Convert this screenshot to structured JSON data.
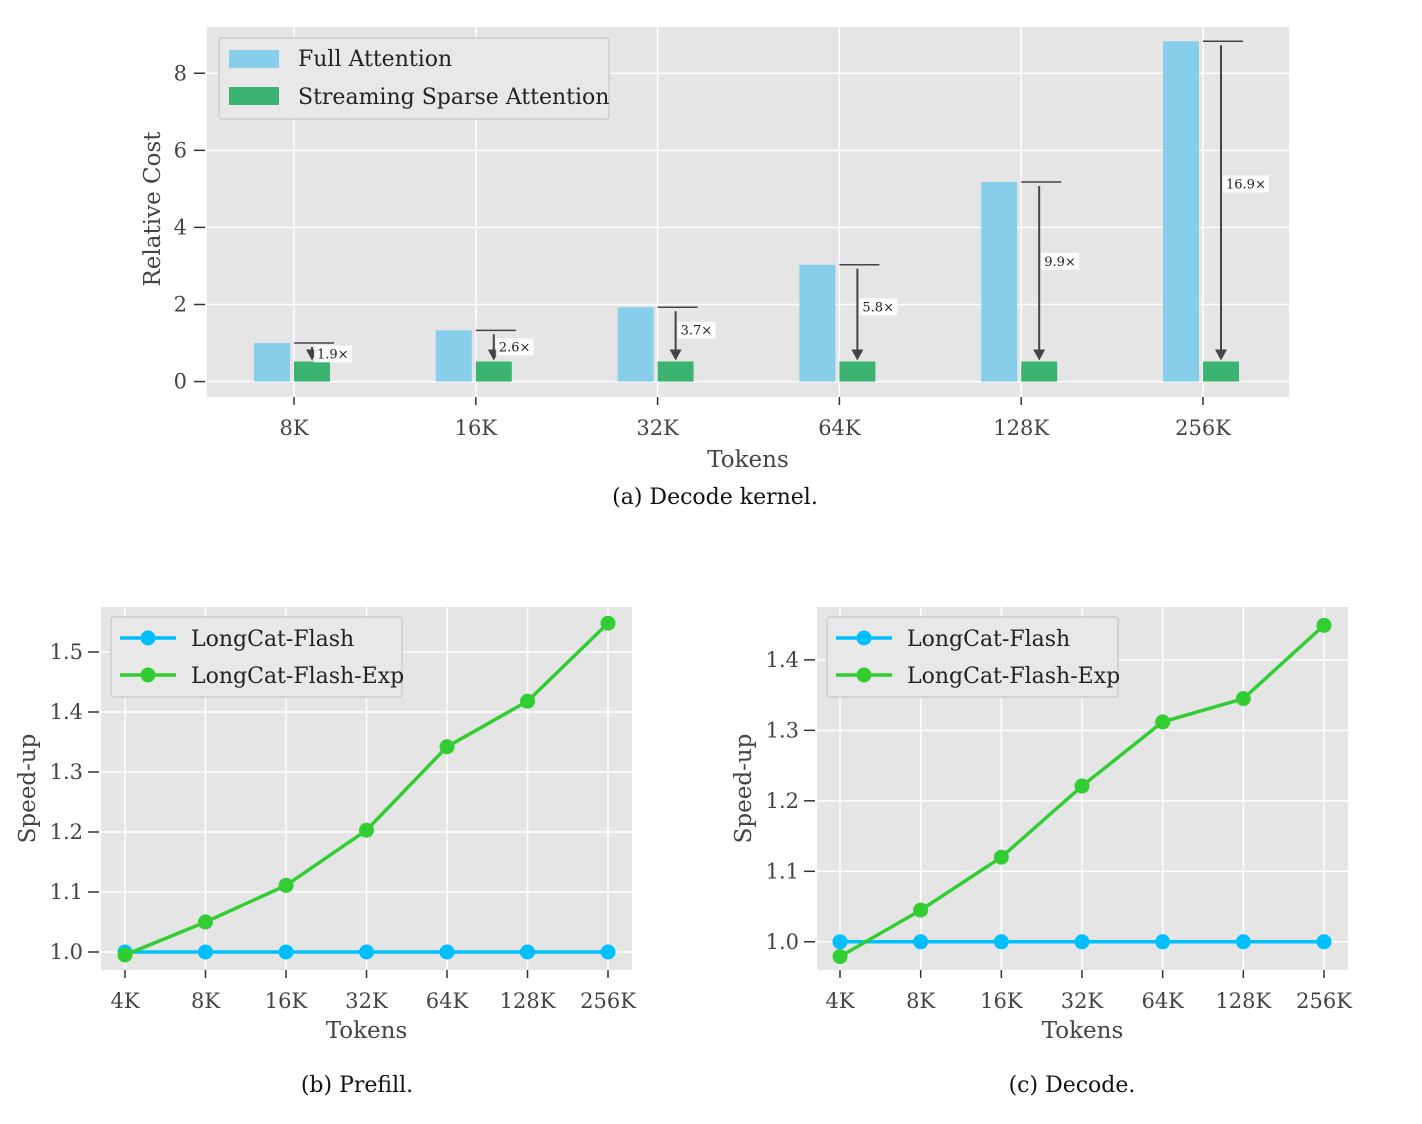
{
  "captions": {
    "a": "(a) Decode kernel.",
    "b": "(b) Prefill.",
    "c": "(c) Decode."
  },
  "colors": {
    "plot_bg": "#e5e5e5",
    "grid": "#ffffff",
    "full_attention": "#87ceeb",
    "sparse_attention": "#3cb371",
    "longcat_flash": "#00bfff",
    "longcat_flash_exp": "#32cd32",
    "arrow": "#444444"
  },
  "chart_data": [
    {
      "id": "a",
      "type": "bar",
      "xlabel": "Tokens",
      "ylabel": "Relative Cost",
      "categories": [
        "8K",
        "16K",
        "32K",
        "64K",
        "128K",
        "256K"
      ],
      "ylim": [
        -0.4,
        9.2
      ],
      "yticks": [
        0,
        2,
        4,
        6,
        8
      ],
      "grid": true,
      "legend_position": "top-left",
      "series": [
        {
          "name": "Full Attention",
          "values": [
            1.0,
            1.33,
            1.93,
            3.03,
            5.18,
            8.83
          ]
        },
        {
          "name": "Streaming Sparse Attention",
          "values": [
            0.52,
            0.52,
            0.52,
            0.52,
            0.52,
            0.52
          ]
        }
      ],
      "annotations": [
        "1.9×",
        "2.6×",
        "3.7×",
        "5.8×",
        "9.9×",
        "16.9×"
      ]
    },
    {
      "id": "b",
      "type": "line",
      "xlabel": "Tokens",
      "ylabel": "Speed-up",
      "categories": [
        "4K",
        "8K",
        "16K",
        "32K",
        "64K",
        "128K",
        "256K"
      ],
      "ylim": [
        0.97,
        1.575
      ],
      "yticks": [
        "1.0",
        "1.1",
        "1.2",
        "1.3",
        "1.4",
        "1.5"
      ],
      "grid": true,
      "legend_position": "top-left",
      "series": [
        {
          "name": "LongCat-Flash",
          "values": [
            1.0,
            1.0,
            1.0,
            1.0,
            1.0,
            1.0,
            1.0
          ]
        },
        {
          "name": "LongCat-Flash-Exp",
          "values": [
            0.995,
            1.05,
            1.111,
            1.203,
            1.342,
            1.418,
            1.548
          ]
        }
      ]
    },
    {
      "id": "c",
      "type": "line",
      "xlabel": "Tokens",
      "ylabel": "Speed-up",
      "categories": [
        "4K",
        "8K",
        "16K",
        "32K",
        "64K",
        "128K",
        "256K"
      ],
      "ylim": [
        0.96,
        1.475
      ],
      "yticks": [
        "1.0",
        "1.1",
        "1.2",
        "1.3",
        "1.4"
      ],
      "grid": true,
      "legend_position": "top-left",
      "series": [
        {
          "name": "LongCat-Flash",
          "values": [
            1.0,
            1.0,
            1.0,
            1.0,
            1.0,
            1.0,
            1.0
          ]
        },
        {
          "name": "LongCat-Flash-Exp",
          "values": [
            0.979,
            1.045,
            1.12,
            1.221,
            1.312,
            1.345,
            1.449
          ]
        }
      ]
    }
  ]
}
